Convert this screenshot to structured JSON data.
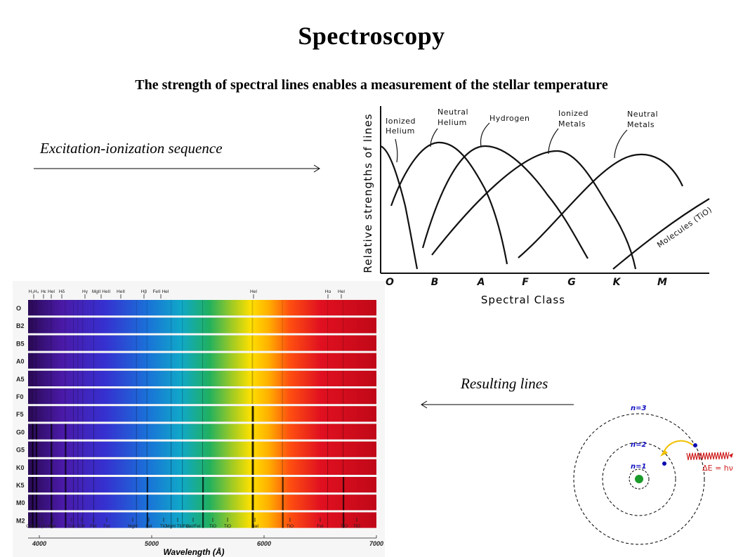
{
  "slide": {
    "title": "Spectroscopy",
    "subtitle": "The strength of spectral lines enables a measurement of the stellar temperature",
    "caption_left": "Excitation-ionization sequence",
    "caption_right": "Resulting lines"
  },
  "chart_data": {
    "type": "line",
    "ylabel": "Relative strengths of lines",
    "xlabel": "Spectral Class",
    "categories": [
      "O",
      "B",
      "A",
      "F",
      "G",
      "K",
      "M"
    ],
    "series": [
      {
        "name": "Ionized Helium",
        "peak": "O",
        "label_lines": [
          "Ionized",
          "Helium"
        ]
      },
      {
        "name": "Neutral Helium",
        "peak": "B",
        "label_lines": [
          "Neutral",
          "Helium"
        ]
      },
      {
        "name": "Hydrogen",
        "peak": "A",
        "label_lines": [
          "Hydrogen"
        ]
      },
      {
        "name": "Ionized Metals",
        "peak": "G",
        "label_lines": [
          "Ionized",
          "Metals"
        ]
      },
      {
        "name": "Neutral Metals",
        "peak": "K",
        "label_lines": [
          "Neutral",
          "Metals"
        ]
      },
      {
        "name": "Molecules (TiO)",
        "peak": "M",
        "label_lines": [
          "Molecules (TiO)"
        ]
      }
    ],
    "colors": {
      "curve": "#111111",
      "axis": "#111111"
    }
  },
  "spectra": {
    "rows": [
      "O",
      "B2",
      "B5",
      "A0",
      "A5",
      "F0",
      "F5",
      "G0",
      "G5",
      "K0",
      "K5",
      "M0",
      "M2"
    ],
    "top_labels": [
      "H₃H₄",
      "Hε",
      "HeI",
      "Hδ",
      "Hγ",
      "MgII HeII",
      "HeII",
      "Hβ",
      "FeII HeI",
      "HeI",
      "Hα",
      "HeI"
    ],
    "bottom_labels": [
      "CN",
      "CaII (K+H)",
      "FeI",
      "CaI",
      "CH",
      "FeI",
      "FeI",
      "MgH",
      "FeI",
      "TiO",
      "MgH TiI/FeI",
      "CaI/FeI",
      "TiO",
      "TiO",
      "NaI",
      "TiO",
      "FeI",
      "TiO",
      "TiO"
    ],
    "wavelength_ticks": [
      "4000",
      "5000",
      "6000",
      "7000"
    ],
    "axis_title": "Wavelength (Å)"
  },
  "atom": {
    "levels": [
      "n=1",
      "n=2",
      "n=3"
    ],
    "energy_label": "ΔE = hν",
    "colors": {
      "nucleus": "#1a9a2a",
      "electron": "#0a0ab0",
      "transition": "#f0c000",
      "photon": "#d02020",
      "level_text": "#1010c0"
    }
  }
}
